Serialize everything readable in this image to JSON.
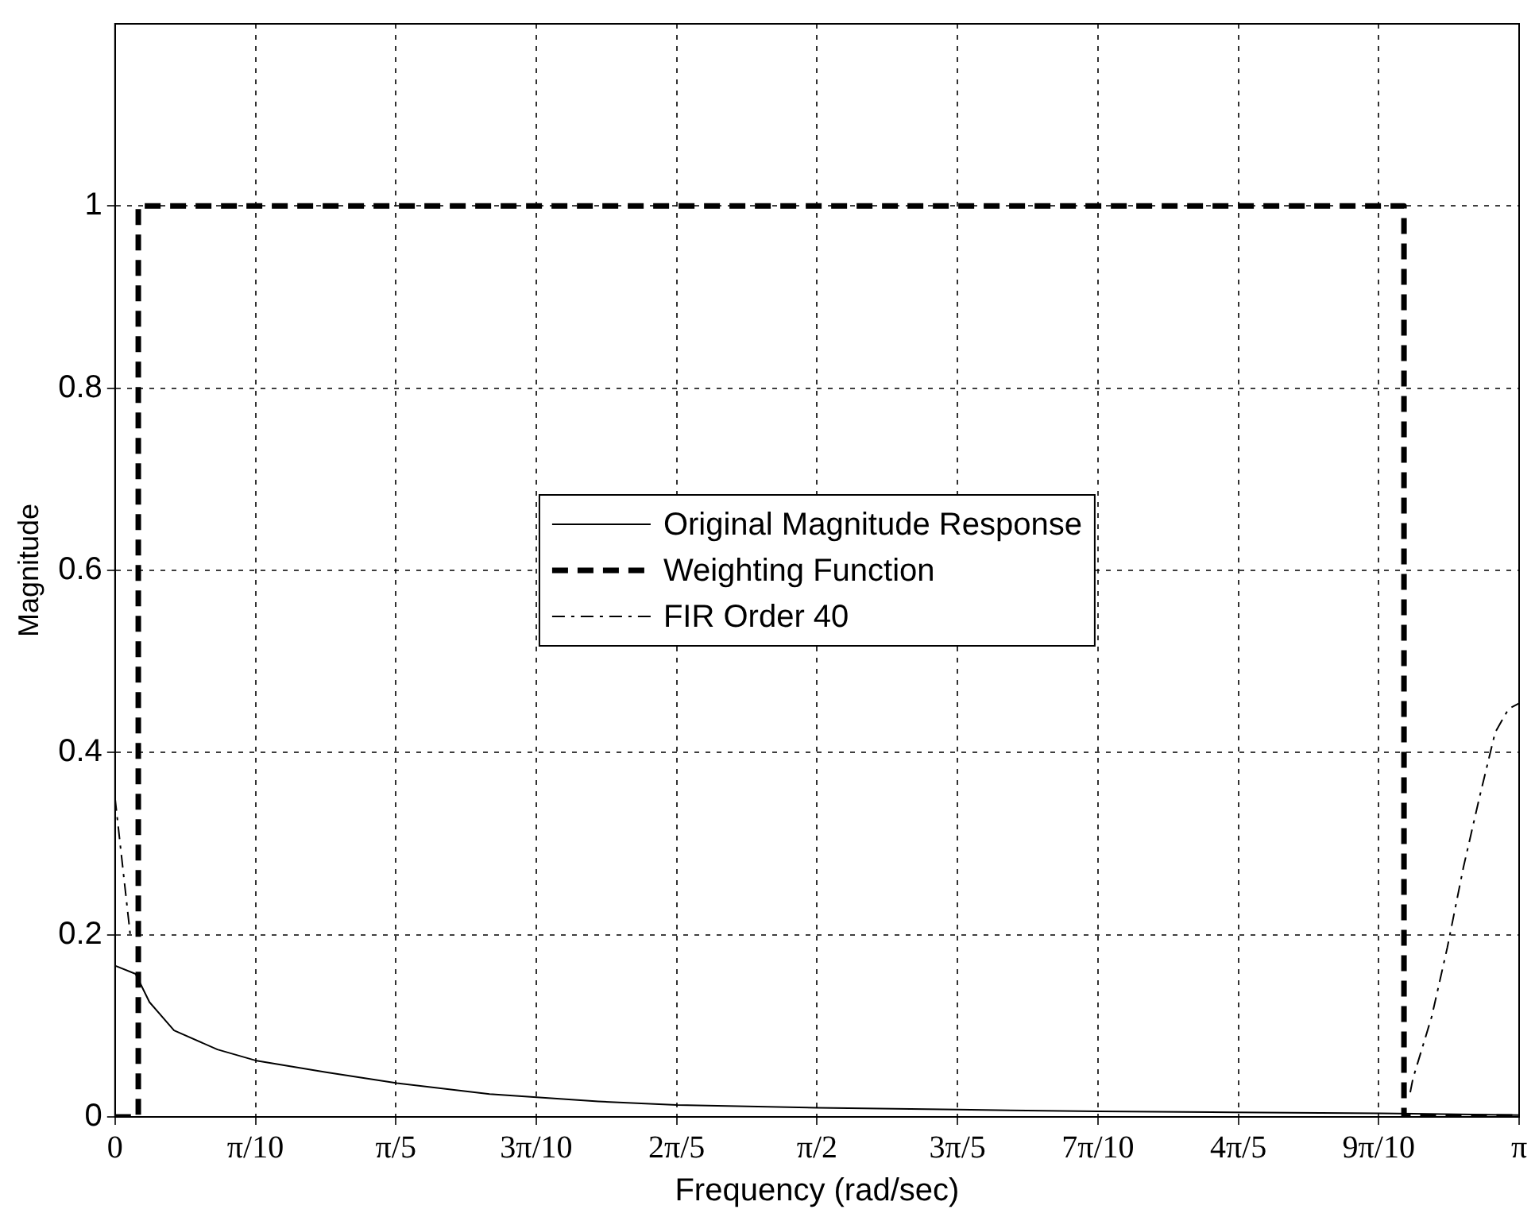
{
  "chart_data": {
    "type": "line",
    "xlabel": "Frequency (rad/sec)",
    "ylabel": "Magnitude",
    "xlim": [
      0,
      3.1416
    ],
    "ylim": [
      0,
      1.2
    ],
    "xticks": [
      0,
      {
        "value": 0.31416,
        "label": "π/10"
      },
      {
        "value": 0.62832,
        "label": "π/5"
      },
      {
        "value": 0.94248,
        "label": "3π/10"
      },
      {
        "value": 1.25664,
        "label": "2π/5"
      },
      {
        "value": 1.5708,
        "label": "π/2"
      },
      {
        "value": 1.88496,
        "label": "3π/5"
      },
      {
        "value": 2.19911,
        "label": "7π/10"
      },
      {
        "value": 2.51327,
        "label": "4π/5"
      },
      {
        "value": 2.82743,
        "label": "9π/10"
      },
      {
        "value": 3.1416,
        "label": "π"
      }
    ],
    "yticks": [
      0,
      0.2,
      0.4,
      0.6,
      0.8,
      1
    ],
    "grid": true,
    "legend": "center",
    "marker": "none",
    "series": [
      {
        "name": "Original Magnitude Response",
        "color": "#000000",
        "line_style": "solid",
        "x": [
          0,
          0.046,
          0.077,
          0.132,
          0.229,
          0.314,
          0.472,
          0.631,
          0.838,
          1.081,
          1.257,
          1.571,
          1.885,
          2.2,
          2.5,
          2.83,
          3.1416
        ],
        "values": [
          0.166,
          0.157,
          0.126,
          0.095,
          0.074,
          0.062,
          0.049,
          0.037,
          0.025,
          0.017,
          0.013,
          0.01,
          0.008,
          0.006,
          0.005,
          0.004,
          0.002
        ]
      },
      {
        "name": "Weighting Function",
        "color": "#000000",
        "line_style": "dashed",
        "x": [
          0,
          0.052,
          0.052,
          2.884,
          2.884,
          3.1416
        ],
        "values": [
          0,
          0,
          1,
          1,
          0,
          0
        ]
      },
      {
        "name": "FIR Order 40",
        "color": "#000000",
        "line_style": "dashdot",
        "x": [
          0,
          0.034,
          0.5,
          2.898,
          2.904,
          2.946,
          2.981,
          3.017,
          3.053,
          3.088,
          3.118,
          3.1416
        ],
        "values": [
          0.35,
          0.2,
          null,
          0.027,
          0.042,
          0.11,
          0.186,
          0.274,
          0.351,
          0.422,
          0.448,
          0.454
        ]
      }
    ]
  }
}
